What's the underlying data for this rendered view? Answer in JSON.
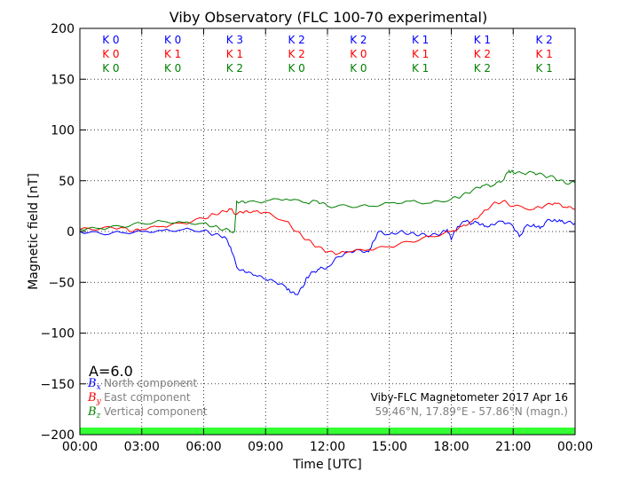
{
  "chart_data": {
    "type": "line",
    "title": "Viby Observatory (FLC 100-70 experimental)",
    "xlabel": "Time [UTC]",
    "ylabel": "Magnetic field [nT]",
    "xlim": [
      0,
      24
    ],
    "ylim": [
      -200,
      200
    ],
    "x_ticks": [
      0,
      3,
      6,
      9,
      12,
      15,
      18,
      21,
      24
    ],
    "x_tick_labels": [
      "00:00",
      "03:00",
      "06:00",
      "09:00",
      "12:00",
      "15:00",
      "18:00",
      "21:00",
      "00:00"
    ],
    "y_ticks": [
      200,
      150,
      100,
      50,
      0,
      -50,
      -100,
      -150,
      -200
    ],
    "y_tick_labels": [
      "200",
      "150",
      "100",
      "50",
      "0",
      "−50",
      "−100",
      "−150",
      "−200"
    ],
    "grid": true,
    "series": [
      {
        "name": "North component",
        "symbol": "B",
        "subscript": "x",
        "color": "#0000ff",
        "x": [
          0,
          1,
          2,
          3,
          4,
          5,
          6,
          6.5,
          7,
          7.3,
          7.6,
          8,
          8.5,
          9,
          9.5,
          10,
          10.2,
          10.5,
          10.8,
          11,
          11.3,
          11.6,
          12,
          12.5,
          13,
          13.5,
          14,
          14.2,
          14.5,
          15,
          15.5,
          16,
          16.5,
          17,
          17.5,
          17.8,
          18,
          18.3,
          18.7,
          19,
          19.3,
          19.6,
          20,
          20.5,
          21,
          21.3,
          21.6,
          22,
          22.3,
          22.6,
          23,
          23.3,
          23.6,
          24
        ],
        "values": [
          0,
          -2,
          -1,
          0,
          1,
          2,
          1,
          -3,
          -5,
          -15,
          -35,
          -40,
          -43,
          -47,
          -50,
          -55,
          -60,
          -62,
          -55,
          -45,
          -40,
          -37,
          -35,
          -25,
          -20,
          -18,
          -20,
          -10,
          0,
          -3,
          0,
          -2,
          -3,
          -4,
          -2,
          2,
          -8,
          5,
          10,
          8,
          9,
          5,
          7,
          10,
          5,
          -5,
          5,
          7,
          3,
          10,
          12,
          10,
          9,
          8
        ]
      },
      {
        "name": "East component",
        "symbol": "B",
        "subscript": "y",
        "color": "#ff0000",
        "x": [
          0,
          1,
          2,
          2.5,
          3,
          4,
          5,
          6,
          6.5,
          7,
          7.3,
          7.6,
          8,
          8.5,
          9,
          10,
          10.5,
          11,
          11.5,
          12,
          12.5,
          13,
          14,
          15,
          16,
          17,
          18,
          18.5,
          19,
          19.5,
          20,
          20.5,
          21,
          22,
          22.5,
          23,
          23.5,
          24
        ],
        "values": [
          2,
          3,
          4,
          0,
          2,
          5,
          8,
          13,
          17,
          20,
          22,
          17,
          20,
          20,
          19,
          10,
          0,
          -8,
          -15,
          -20,
          -22,
          -20,
          -18,
          -15,
          -10,
          -5,
          0,
          5,
          10,
          18,
          27,
          30,
          25,
          22,
          25,
          28,
          24,
          22
        ]
      },
      {
        "name": "Vertical component",
        "symbol": "B",
        "subscript": "z",
        "color": "#008000",
        "x": [
          0,
          1,
          2,
          3,
          4,
          5,
          6,
          6.5,
          7,
          7.5,
          7.6,
          8,
          9,
          10,
          11,
          11.5,
          12,
          13,
          14,
          15,
          16,
          17,
          18,
          18.5,
          19,
          19.5,
          20,
          20.5,
          20.8,
          21,
          21.5,
          22,
          22.5,
          23,
          23.5,
          24
        ],
        "values": [
          2,
          3,
          5,
          8,
          10,
          9,
          8,
          5,
          2,
          0,
          30,
          28,
          30,
          32,
          28,
          30,
          25,
          25,
          25,
          28,
          30,
          28,
          32,
          35,
          40,
          45,
          45,
          50,
          60,
          58,
          57,
          58,
          55,
          53,
          48,
          48
        ]
      }
    ],
    "k_indices": {
      "rows": [
        {
          "color": "#0000ff",
          "values": [
            "K 0",
            "K 0",
            "K 3",
            "K 2",
            "K 2",
            "K 1",
            "K 1",
            "K 2"
          ]
        },
        {
          "color": "#ff0000",
          "values": [
            "K 0",
            "K 1",
            "K 1",
            "K 2",
            "K 0",
            "K 1",
            "K 2",
            "K 1"
          ]
        },
        {
          "color": "#008000",
          "values": [
            "K 0",
            "K 0",
            "K 2",
            "K 0",
            "K 0",
            "K 1",
            "K 2",
            "K 1"
          ]
        }
      ]
    },
    "a_index_label": "A=6.0",
    "info_line_1": "Viby-FLC Magnetometer 2017 Apr 16",
    "info_line_2": "59.46°N, 17.89°E - 57.86°N (magn.)",
    "activity_bar_color": "#33ff33",
    "legend_placement": "bottom-left"
  }
}
